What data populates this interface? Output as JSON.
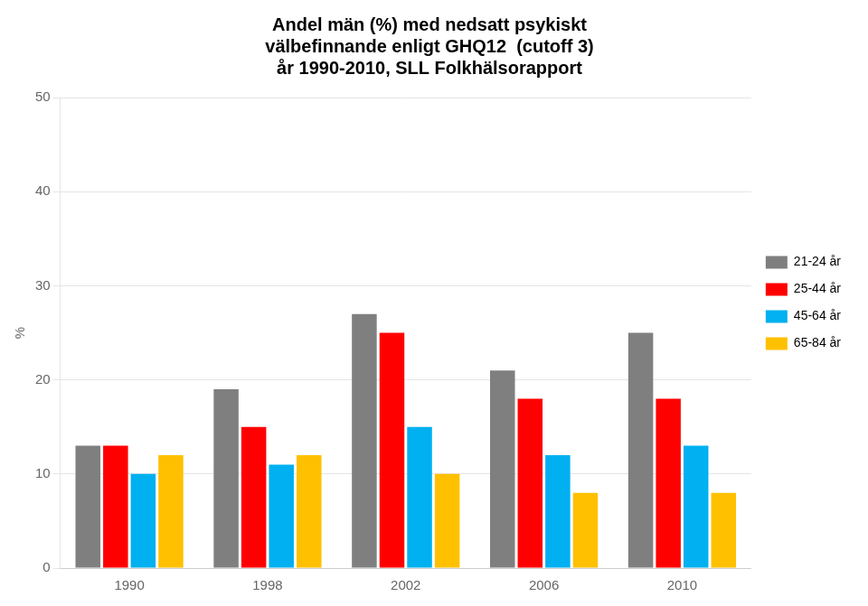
{
  "chart_data": {
    "type": "bar",
    "title": "Andel män (%) med nedsatt psykiskt\nvälbefinnande enligt GHQ12  (cutoff 3)\når 1990-2010, SLL Folkhälsorapport",
    "y_label": "%",
    "categories": [
      "1990",
      "1998",
      "2002",
      "2006",
      "2010"
    ],
    "series": [
      {
        "name": "21-24 år",
        "color": "#7F7F7F",
        "values": [
          13,
          19,
          27,
          21,
          25
        ]
      },
      {
        "name": "25-44 år",
        "color": "#FF0000",
        "values": [
          13,
          15,
          25,
          18,
          18
        ]
      },
      {
        "name": "45-64 år",
        "color": "#00B0F0",
        "values": [
          10,
          11,
          15,
          12,
          13
        ]
      },
      {
        "name": "65-84 år",
        "color": "#FFC000",
        "values": [
          12,
          12,
          10,
          8,
          8
        ]
      }
    ],
    "ylim": [
      0,
      50
    ],
    "yticks": [
      0,
      10,
      20,
      30,
      40,
      50
    ],
    "grid": true,
    "legend": "right"
  }
}
